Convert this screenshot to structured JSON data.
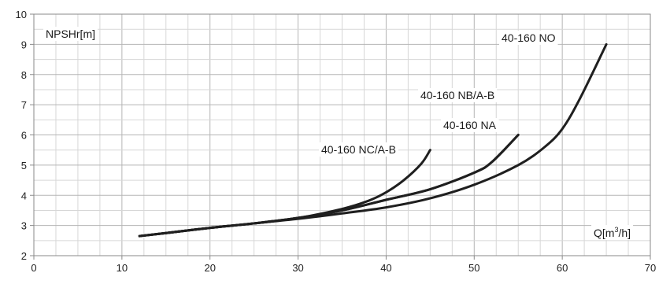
{
  "chart_data": {
    "type": "line",
    "title": "",
    "ylabel": "NPSHr[m]",
    "xlabel_parts": {
      "base": "Q[m",
      "sup": "3",
      "end": "/h]"
    },
    "xlim": [
      0,
      70
    ],
    "ylim": [
      2,
      10
    ],
    "x_ticks": [
      0,
      10,
      20,
      30,
      40,
      50,
      60,
      70
    ],
    "y_ticks": [
      2,
      3,
      4,
      5,
      6,
      7,
      8,
      9,
      10
    ],
    "x_minor_step": 2.5,
    "y_minor_step": 0.5,
    "grid": true,
    "colors": {
      "line": "#1f1f1f",
      "grid": "#b5b5b5",
      "grid_minor": "#d7d7d7",
      "frame": "#8a8a8a"
    },
    "series": [
      {
        "name": "40-160 NC/A-B",
        "x": [
          12,
          15,
          20,
          25,
          30,
          35,
          38,
          40,
          42,
          44,
          45
        ],
        "y": [
          2.65,
          2.75,
          2.92,
          3.07,
          3.25,
          3.55,
          3.82,
          4.1,
          4.5,
          5.05,
          5.5
        ]
      },
      {
        "name": "40-160 NB/A-B",
        "x": [
          12,
          15,
          20,
          25,
          30,
          35,
          40,
          45,
          50,
          52,
          55
        ],
        "y": [
          2.65,
          2.75,
          2.92,
          3.07,
          3.25,
          3.5,
          3.85,
          4.2,
          4.75,
          5.1,
          6.0
        ]
      },
      {
        "name": "40-160 NA",
        "x": [
          12,
          15,
          20,
          25,
          30,
          35,
          40,
          45,
          50,
          52,
          55
        ],
        "y": [
          2.65,
          2.75,
          2.92,
          3.07,
          3.25,
          3.5,
          3.85,
          4.2,
          4.75,
          5.1,
          6.0
        ]
      },
      {
        "name": "40-160 NO",
        "x": [
          12,
          15,
          20,
          25,
          30,
          35,
          40,
          45,
          50,
          55,
          58,
          60,
          62,
          65
        ],
        "y": [
          2.65,
          2.75,
          2.92,
          3.07,
          3.22,
          3.4,
          3.6,
          3.9,
          4.35,
          5.0,
          5.6,
          6.2,
          7.2,
          9.0
        ]
      }
    ]
  }
}
